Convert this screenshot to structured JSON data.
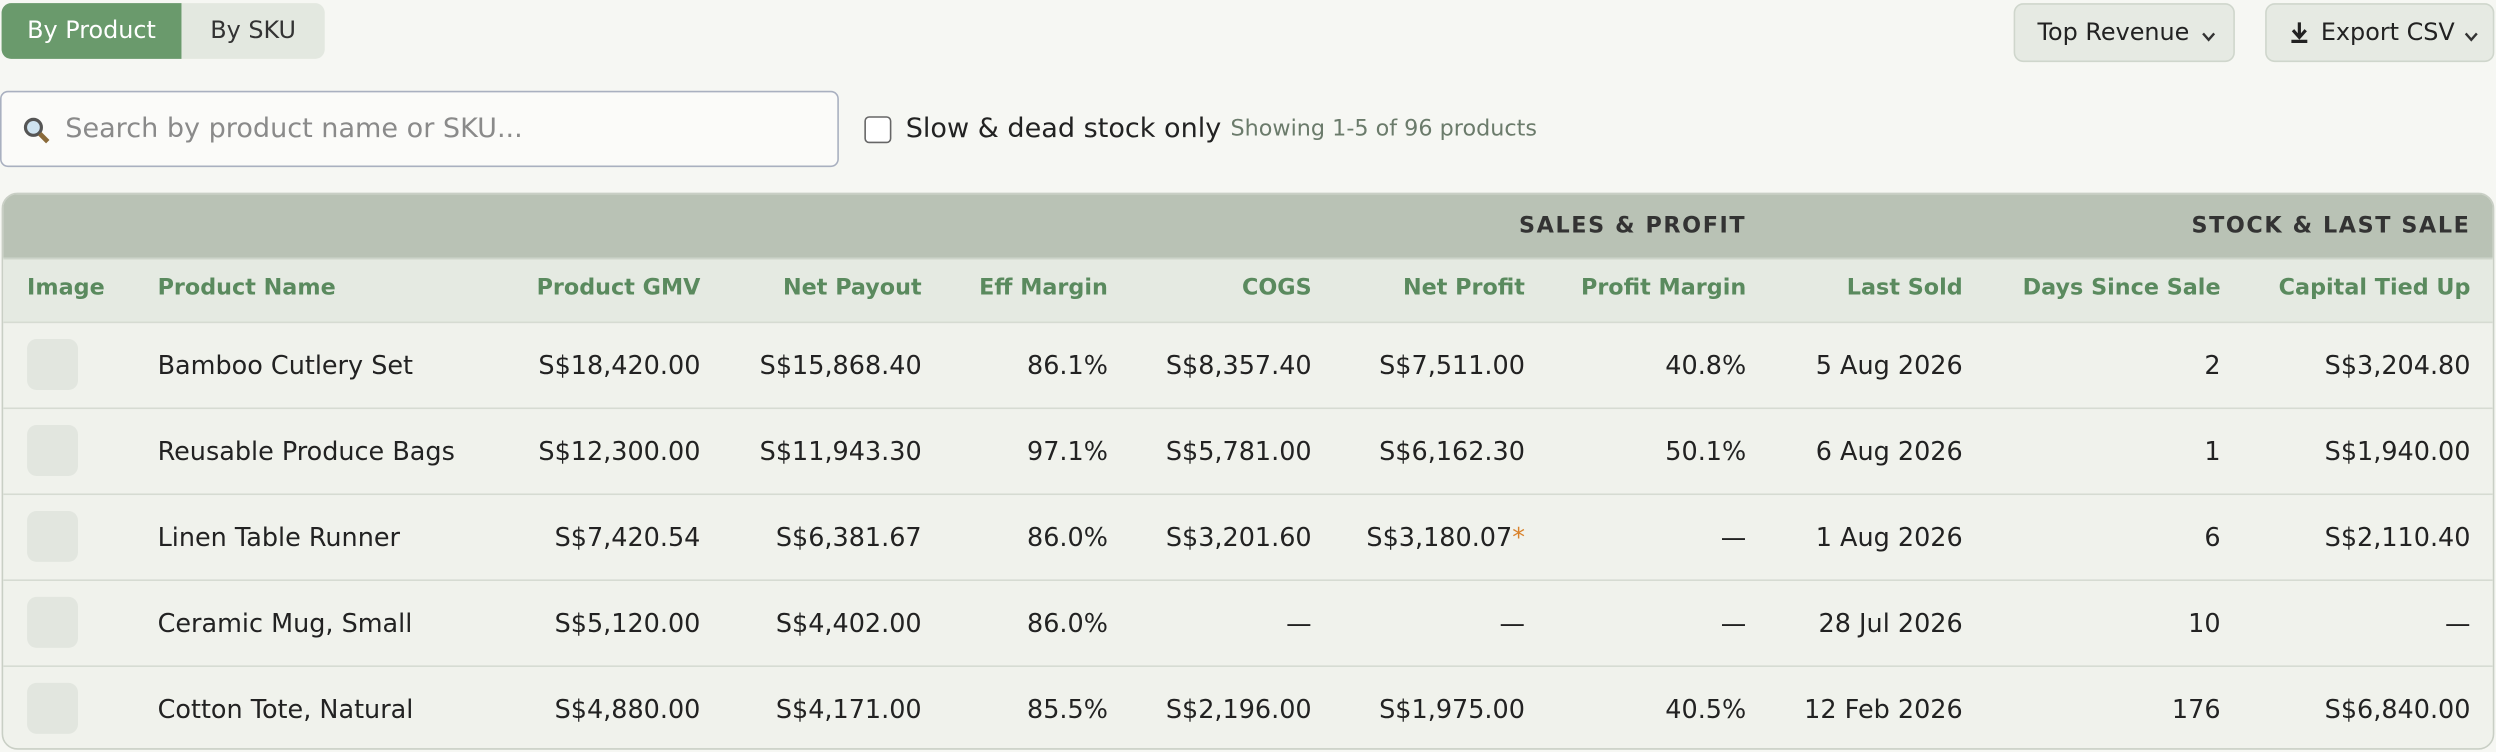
{
  "tabs": [
    "By Product",
    "By SKU"
  ],
  "sort_button": "Top Revenue",
  "export_button": "Export CSV",
  "search_placeholder": "Search by product name or SKU...",
  "filter_label": "Slow & dead stock only",
  "showing": "Showing 1-5 of 96 products",
  "table": {
    "groups": [
      "SALES & PROFIT",
      "STOCK & LAST SALE"
    ],
    "columns": [
      "Image",
      "Product Name",
      "Product GMV",
      "Net Payout",
      "Eff Margin",
      "COGS",
      "Net Profit",
      "Profit Margin",
      "Last Sold",
      "Days Since Sale",
      "Capital Tied Up"
    ],
    "rows": [
      [
        "Bamboo Cutlery Set",
        "S$18,420.00",
        "S$15,868.40",
        "86.1%",
        "S$8,357.40",
        "S$7,511.00",
        "40.8%",
        "5 Aug 2026",
        "2",
        "S$3,204.80"
      ],
      [
        "Reusable Produce Bags",
        "S$12,300.00",
        "S$11,943.30",
        "97.1%",
        "S$5,781.00",
        "S$6,162.30",
        "50.1%",
        "6 Aug 2026",
        "1",
        "S$1,940.00"
      ],
      [
        "Linen Table Runner",
        "S$7,420.54",
        "S$6,381.67",
        "86.0%",
        "S$3,201.60",
        {
          "text": "S$3,180.07",
          "flag": "*"
        },
        "—",
        "1 Aug 2026",
        "6",
        "S$2,110.40"
      ],
      [
        "Ceramic Mug, Small",
        "S$5,120.00",
        "S$4,402.00",
        "86.0%",
        "—",
        "—",
        "—",
        "28 Jul 2026",
        "10",
        "—"
      ],
      [
        "Cotton Tote, Natural",
        "S$4,880.00",
        "S$4,171.00",
        "85.5%",
        "S$2,196.00",
        "S$1,975.00",
        "40.5%",
        "12 Feb 2026",
        "176",
        "S$6,840.00"
      ]
    ]
  }
}
